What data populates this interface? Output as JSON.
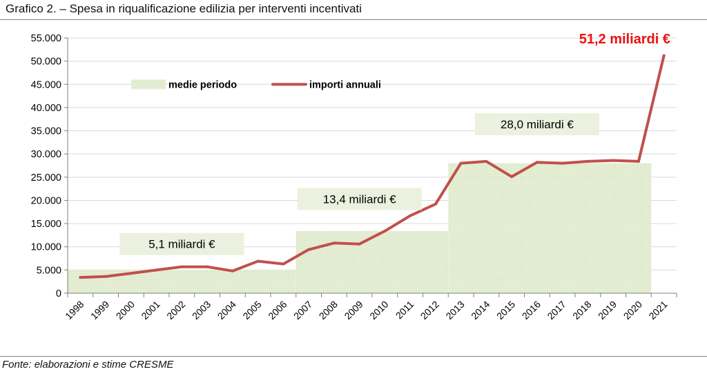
{
  "title": "Grafico 2. – Spesa in riqualificazione edilizia per interventi incentivati",
  "source": "Fonte: elaborazioni e stime CRESME",
  "colors": {
    "line": "#c0504d",
    "average_fill": "#e6efd6",
    "average_hatch": "#c9dcab",
    "label_box": "#ebf1de",
    "highlight": "#ee1111",
    "grid": "#d9d9d9",
    "axis": "#7f7f7f"
  },
  "chart_data": {
    "type": "line",
    "title": "",
    "xlabel": "",
    "ylabel": "",
    "ylim": [
      0,
      55000
    ],
    "yticks": [
      0,
      5000,
      10000,
      15000,
      20000,
      25000,
      30000,
      35000,
      40000,
      45000,
      50000,
      55000
    ],
    "ytick_labels": [
      "0",
      "5.000",
      "10.000",
      "15.000",
      "20.000",
      "25.000",
      "30.000",
      "35.000",
      "40.000",
      "45.000",
      "50.000",
      "55.000"
    ],
    "categories": [
      "1998",
      "1999",
      "2000",
      "2001",
      "2002",
      "2003",
      "2004",
      "2005",
      "2006",
      "2007",
      "2008",
      "2009",
      "2010",
      "2011",
      "2012",
      "2013",
      "2014",
      "2015",
      "2016",
      "2017",
      "2018",
      "2019",
      "2020",
      "2021"
    ],
    "grid": true,
    "legend_position": "top-left",
    "legend": [
      {
        "name": "medie periodo",
        "kind": "area"
      },
      {
        "name": "importi annuali",
        "kind": "line"
      }
    ],
    "series": [
      {
        "name": "importi annuali",
        "type": "line",
        "values": [
          3400,
          3600,
          4300,
          5000,
          5700,
          5700,
          4800,
          6900,
          6300,
          9400,
          10800,
          10600,
          13400,
          16700,
          19200,
          28000,
          28400,
          25100,
          28200,
          28000,
          28400,
          28600,
          28400,
          51200
        ]
      },
      {
        "name": "medie periodo",
        "type": "area",
        "periods": [
          {
            "from": "1998",
            "to": "2006",
            "value": 5100
          },
          {
            "from": "2007",
            "to": "2012",
            "value": 13400
          },
          {
            "from": "2013",
            "to": "2020",
            "value": 28000
          }
        ]
      }
    ],
    "annotations": [
      {
        "text": "5,1 miliardi €",
        "x": "2002",
        "y": 10600,
        "kind": "box"
      },
      {
        "text": "13,4 miliardi €",
        "x": "2009",
        "y": 20300,
        "kind": "box"
      },
      {
        "text": "28,0 miliardi €",
        "x": "2016",
        "y": 36400,
        "kind": "box"
      },
      {
        "text": "51,2 miliardi €",
        "x": "2020",
        "y": 55000,
        "kind": "highlight"
      }
    ]
  }
}
